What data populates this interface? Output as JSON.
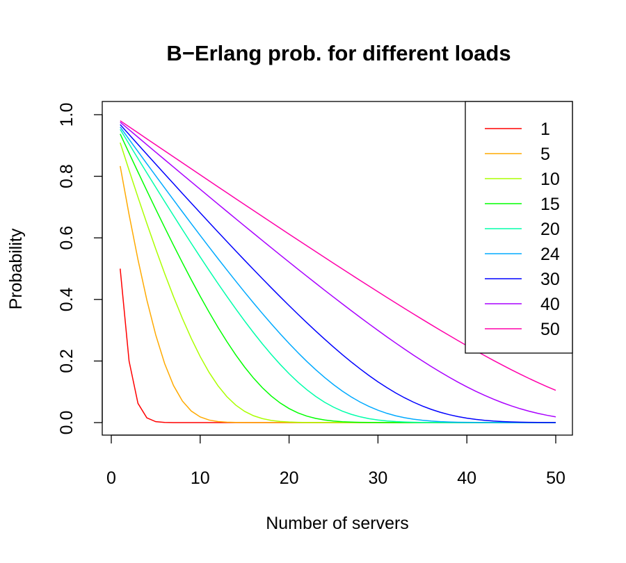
{
  "chart_data": {
    "type": "line",
    "title": "B−Erlang prob. for different loads",
    "xlabel": "Number of servers",
    "ylabel": "Probability",
    "xlim": [
      0,
      50
    ],
    "ylim": [
      0,
      1
    ],
    "xticks": [
      "0",
      "10",
      "20",
      "30",
      "40",
      "50"
    ],
    "yticks": [
      "0.0",
      "0.2",
      "0.4",
      "0.6",
      "0.8",
      "1.0"
    ],
    "grid": false,
    "legend_position": "top-right",
    "series": [
      {
        "name": "1",
        "load": 1,
        "color": "#FF0000"
      },
      {
        "name": "5",
        "load": 5,
        "color": "#FFAA00"
      },
      {
        "name": "10",
        "load": 10,
        "color": "#AAFF00"
      },
      {
        "name": "15",
        "load": 15,
        "color": "#00FF00"
      },
      {
        "name": "20",
        "load": 20,
        "color": "#00FFAA"
      },
      {
        "name": "24",
        "load": 24,
        "color": "#00AAFF"
      },
      {
        "name": "30",
        "load": 30,
        "color": "#0000FF"
      },
      {
        "name": "40",
        "load": 40,
        "color": "#AA00FF"
      },
      {
        "name": "50",
        "load": 50,
        "color": "#FF00AA"
      }
    ],
    "x_range_servers": [
      1,
      50
    ]
  }
}
